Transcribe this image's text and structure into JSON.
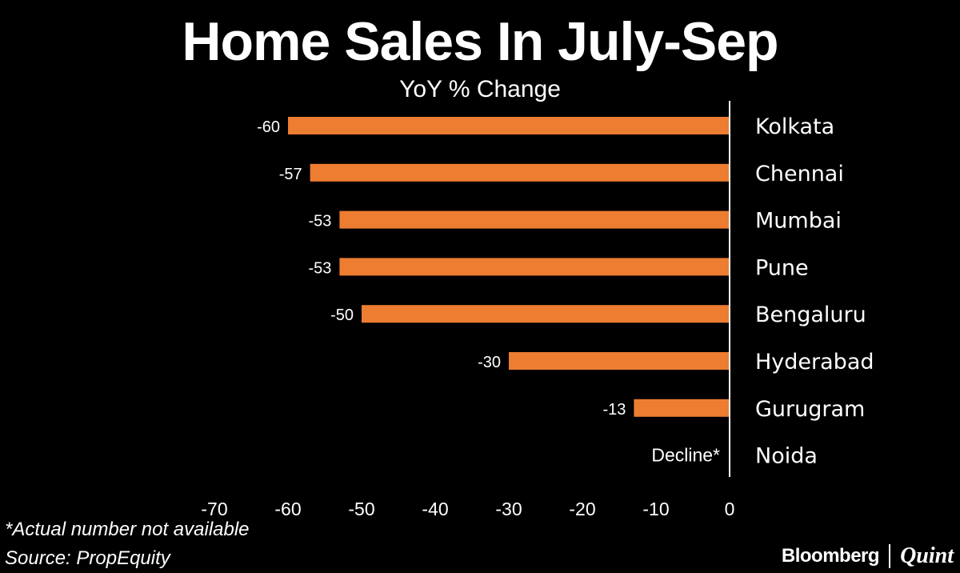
{
  "header": {
    "title": "Home Sales In July-Sep",
    "subtitle": "YoY % Change"
  },
  "chart_data": {
    "type": "bar",
    "orientation": "horizontal",
    "categories": [
      "Kolkata",
      "Chennai",
      "Mumbai",
      "Pune",
      "Bengaluru",
      "Hyderabad",
      "Gurugram",
      "Noida"
    ],
    "values": [
      -60,
      -57,
      -53,
      -53,
      -50,
      -30,
      -13,
      null
    ],
    "data_labels": [
      "-60",
      "-57",
      "-53",
      "-53",
      "-50",
      "-30",
      "-13",
      "Decline*"
    ],
    "xlim": [
      -70,
      0
    ],
    "xticks": [
      -70,
      -60,
      -50,
      -40,
      -30,
      -20,
      -10,
      0
    ],
    "category_axis_side": "right",
    "grid": false,
    "bar_color": "#ED7D31",
    "axis_color": "#FFFFFF",
    "background_color": "#000000"
  },
  "footer": {
    "note": "*Actual number not available",
    "source": "Source: PropEquity",
    "brand_primary": "Bloomberg",
    "brand_secondary": "Quint"
  }
}
